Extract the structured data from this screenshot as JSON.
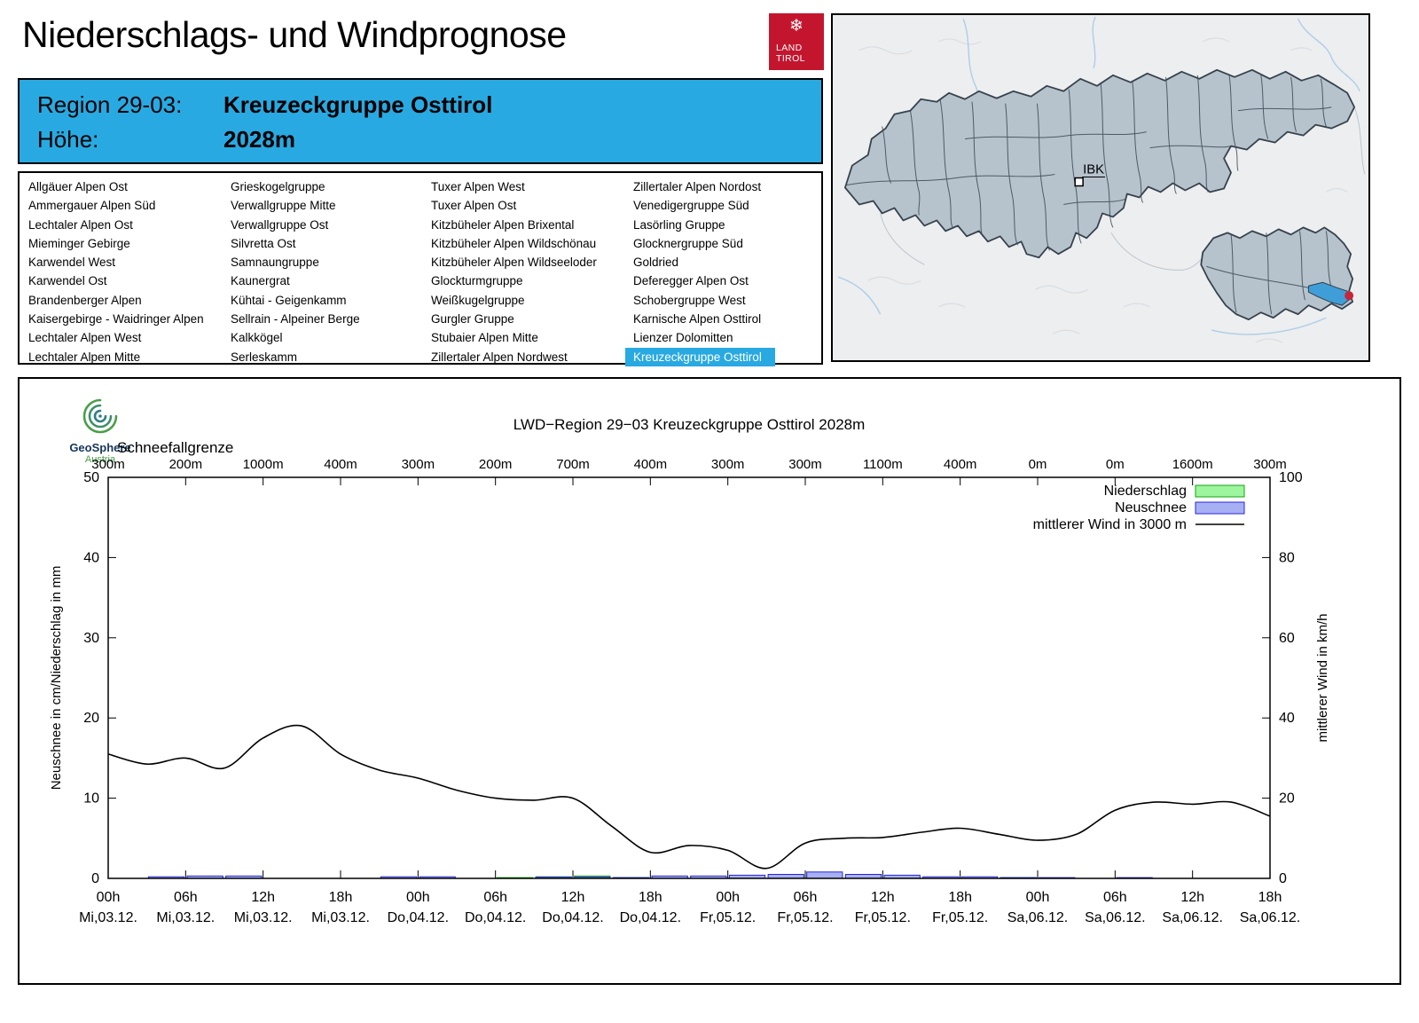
{
  "page": {
    "title": "Niederschlags- und Windprognose"
  },
  "logo": {
    "snowflake": "❄",
    "line1": "LAND",
    "line2": "TIROL"
  },
  "region_header": {
    "region_label": "Region 29-03:",
    "region_value": "Kreuzeckgruppe Osttirol",
    "altitude_label": "Höhe:",
    "altitude_value": "2028m"
  },
  "map": {
    "marker_label": "IBK"
  },
  "geosphere": {
    "name": "GeoSphere",
    "country": "Austria"
  },
  "region_list": {
    "selected": "Kreuzeckgruppe Osttirol",
    "columns": [
      [
        "Allgäuer Alpen Ost",
        "Ammergauer Alpen Süd",
        "Lechtaler Alpen Ost",
        "Mieminger Gebirge",
        "Karwendel West",
        "Karwendel Ost",
        "Brandenberger Alpen",
        "Kaisergebirge - Waidringer Alpen",
        "Lechtaler Alpen West",
        "Lechtaler Alpen Mitte"
      ],
      [
        "Grieskogelgruppe",
        "Verwallgruppe Mitte",
        "Verwallgruppe Ost",
        "Silvretta Ost",
        "Samnaungruppe",
        "Kaunergrat",
        "Kühtai - Geigenkamm",
        "Sellrain - Alpeiner Berge",
        "Kalkkögel",
        "Serleskamm"
      ],
      [
        "Tuxer Alpen West",
        "Tuxer Alpen Ost",
        "Kitzbüheler Alpen Brixental",
        "Kitzbüheler Alpen Wildschönau",
        "Kitzbüheler Alpen Wildseeloder",
        "Glockturmgruppe",
        "Weißkugelgruppe",
        "Gurgler Gruppe",
        "Stubaier Alpen Mitte",
        "Zillertaler Alpen Nordwest"
      ],
      [
        "Zillertaler Alpen Nordost",
        "Venedigergruppe Süd",
        "Lasörling Gruppe",
        "Glocknergruppe Süd",
        "Goldried",
        "Deferegger Alpen Ost",
        "Schobergruppe West",
        "Karnische Alpen Osttirol",
        "Lienzer Dolomitten",
        "Kreuzeckgruppe Osttirol"
      ]
    ]
  },
  "chart_data": {
    "type": "line+bar",
    "title": "LWD−Region 29−03 Kreuzeckgruppe Osttirol 2028m",
    "schneefallgrenze_label": "Schneefallgrenze",
    "schneefallgrenze_m": [
      "300m",
      "200m",
      "1000m",
      "400m",
      "300m",
      "200m",
      "700m",
      "400m",
      "300m",
      "300m",
      "1100m",
      "400m",
      "0m",
      "0m",
      "1600m",
      "300m"
    ],
    "ylabel_left": "Neuschnee in cm/Niederschlag in mm",
    "ylabel_right": "mittlerer Wind in km/h",
    "ylim_left": [
      0,
      50
    ],
    "ylim_right": [
      0,
      100
    ],
    "yticks_left": [
      0,
      10,
      20,
      30,
      40,
      50
    ],
    "yticks_right": [
      0,
      20,
      40,
      60,
      80,
      100
    ],
    "total_hours": 90,
    "x_ticks": {
      "hours": [
        "00h",
        "06h",
        "12h",
        "18h",
        "00h",
        "06h",
        "12h",
        "18h",
        "00h",
        "06h",
        "12h",
        "18h",
        "00h",
        "06h",
        "12h",
        "18h"
      ],
      "days": [
        "Mi,03.12.",
        "Mi,03.12.",
        "Mi,03.12.",
        "Mi,03.12.",
        "Do,04.12.",
        "Do,04.12.",
        "Do,04.12.",
        "Do,04.12.",
        "Fr,05.12.",
        "Fr,05.12.",
        "Fr,05.12.",
        "Fr,05.12.",
        "Sa,06.12.",
        "Sa,06.12.",
        "Sa,06.12.",
        "Sa,06.12."
      ]
    },
    "legend": [
      {
        "label": "Niederschlag",
        "type": "box",
        "fill": "#9df59d",
        "stroke": "#11a611"
      },
      {
        "label": "Neuschnee",
        "type": "box",
        "fill": "#a8b0f4",
        "stroke": "#2727d8"
      },
      {
        "label": "mittlerer Wind in 3000 m",
        "type": "line",
        "stroke": "#000000"
      }
    ],
    "series": [
      {
        "name": "Niederschlag",
        "unit": "mm",
        "axis": "left",
        "kind": "bar",
        "step_hours": 3,
        "values": [
          0,
          0.1,
          0.2,
          0.2,
          0,
          0,
          0,
          0.1,
          0.1,
          0,
          0.1,
          0.2,
          0.3,
          0.1,
          0.2,
          0.2,
          0.3,
          0.3,
          0.4,
          0.3,
          0.2,
          0.1,
          0.1,
          0.1,
          0,
          0,
          0,
          0,
          0,
          0
        ]
      },
      {
        "name": "Neuschnee",
        "unit": "cm",
        "axis": "left",
        "kind": "bar",
        "step_hours": 3,
        "values": [
          0,
          0.2,
          0.3,
          0.3,
          0,
          0,
          0,
          0.2,
          0.2,
          0,
          0,
          0.15,
          0.15,
          0.1,
          0.3,
          0.3,
          0.4,
          0.5,
          0.8,
          0.5,
          0.4,
          0.2,
          0.2,
          0.1,
          0.1,
          0,
          0.1,
          0,
          0,
          0
        ]
      },
      {
        "name": "mittlerer Wind in 3000 m",
        "unit": "km/h",
        "axis": "right",
        "kind": "line",
        "step_hours": 3,
        "values": [
          31,
          28.5,
          30,
          27.5,
          35,
          38,
          31,
          27,
          25,
          22,
          20,
          19.5,
          20,
          13,
          6.5,
          8.2,
          7,
          2.5,
          8.8,
          10,
          10.2,
          11.5,
          12.5,
          11,
          9.5,
          11,
          17,
          19,
          18.5,
          19,
          15.5
        ]
      }
    ]
  }
}
